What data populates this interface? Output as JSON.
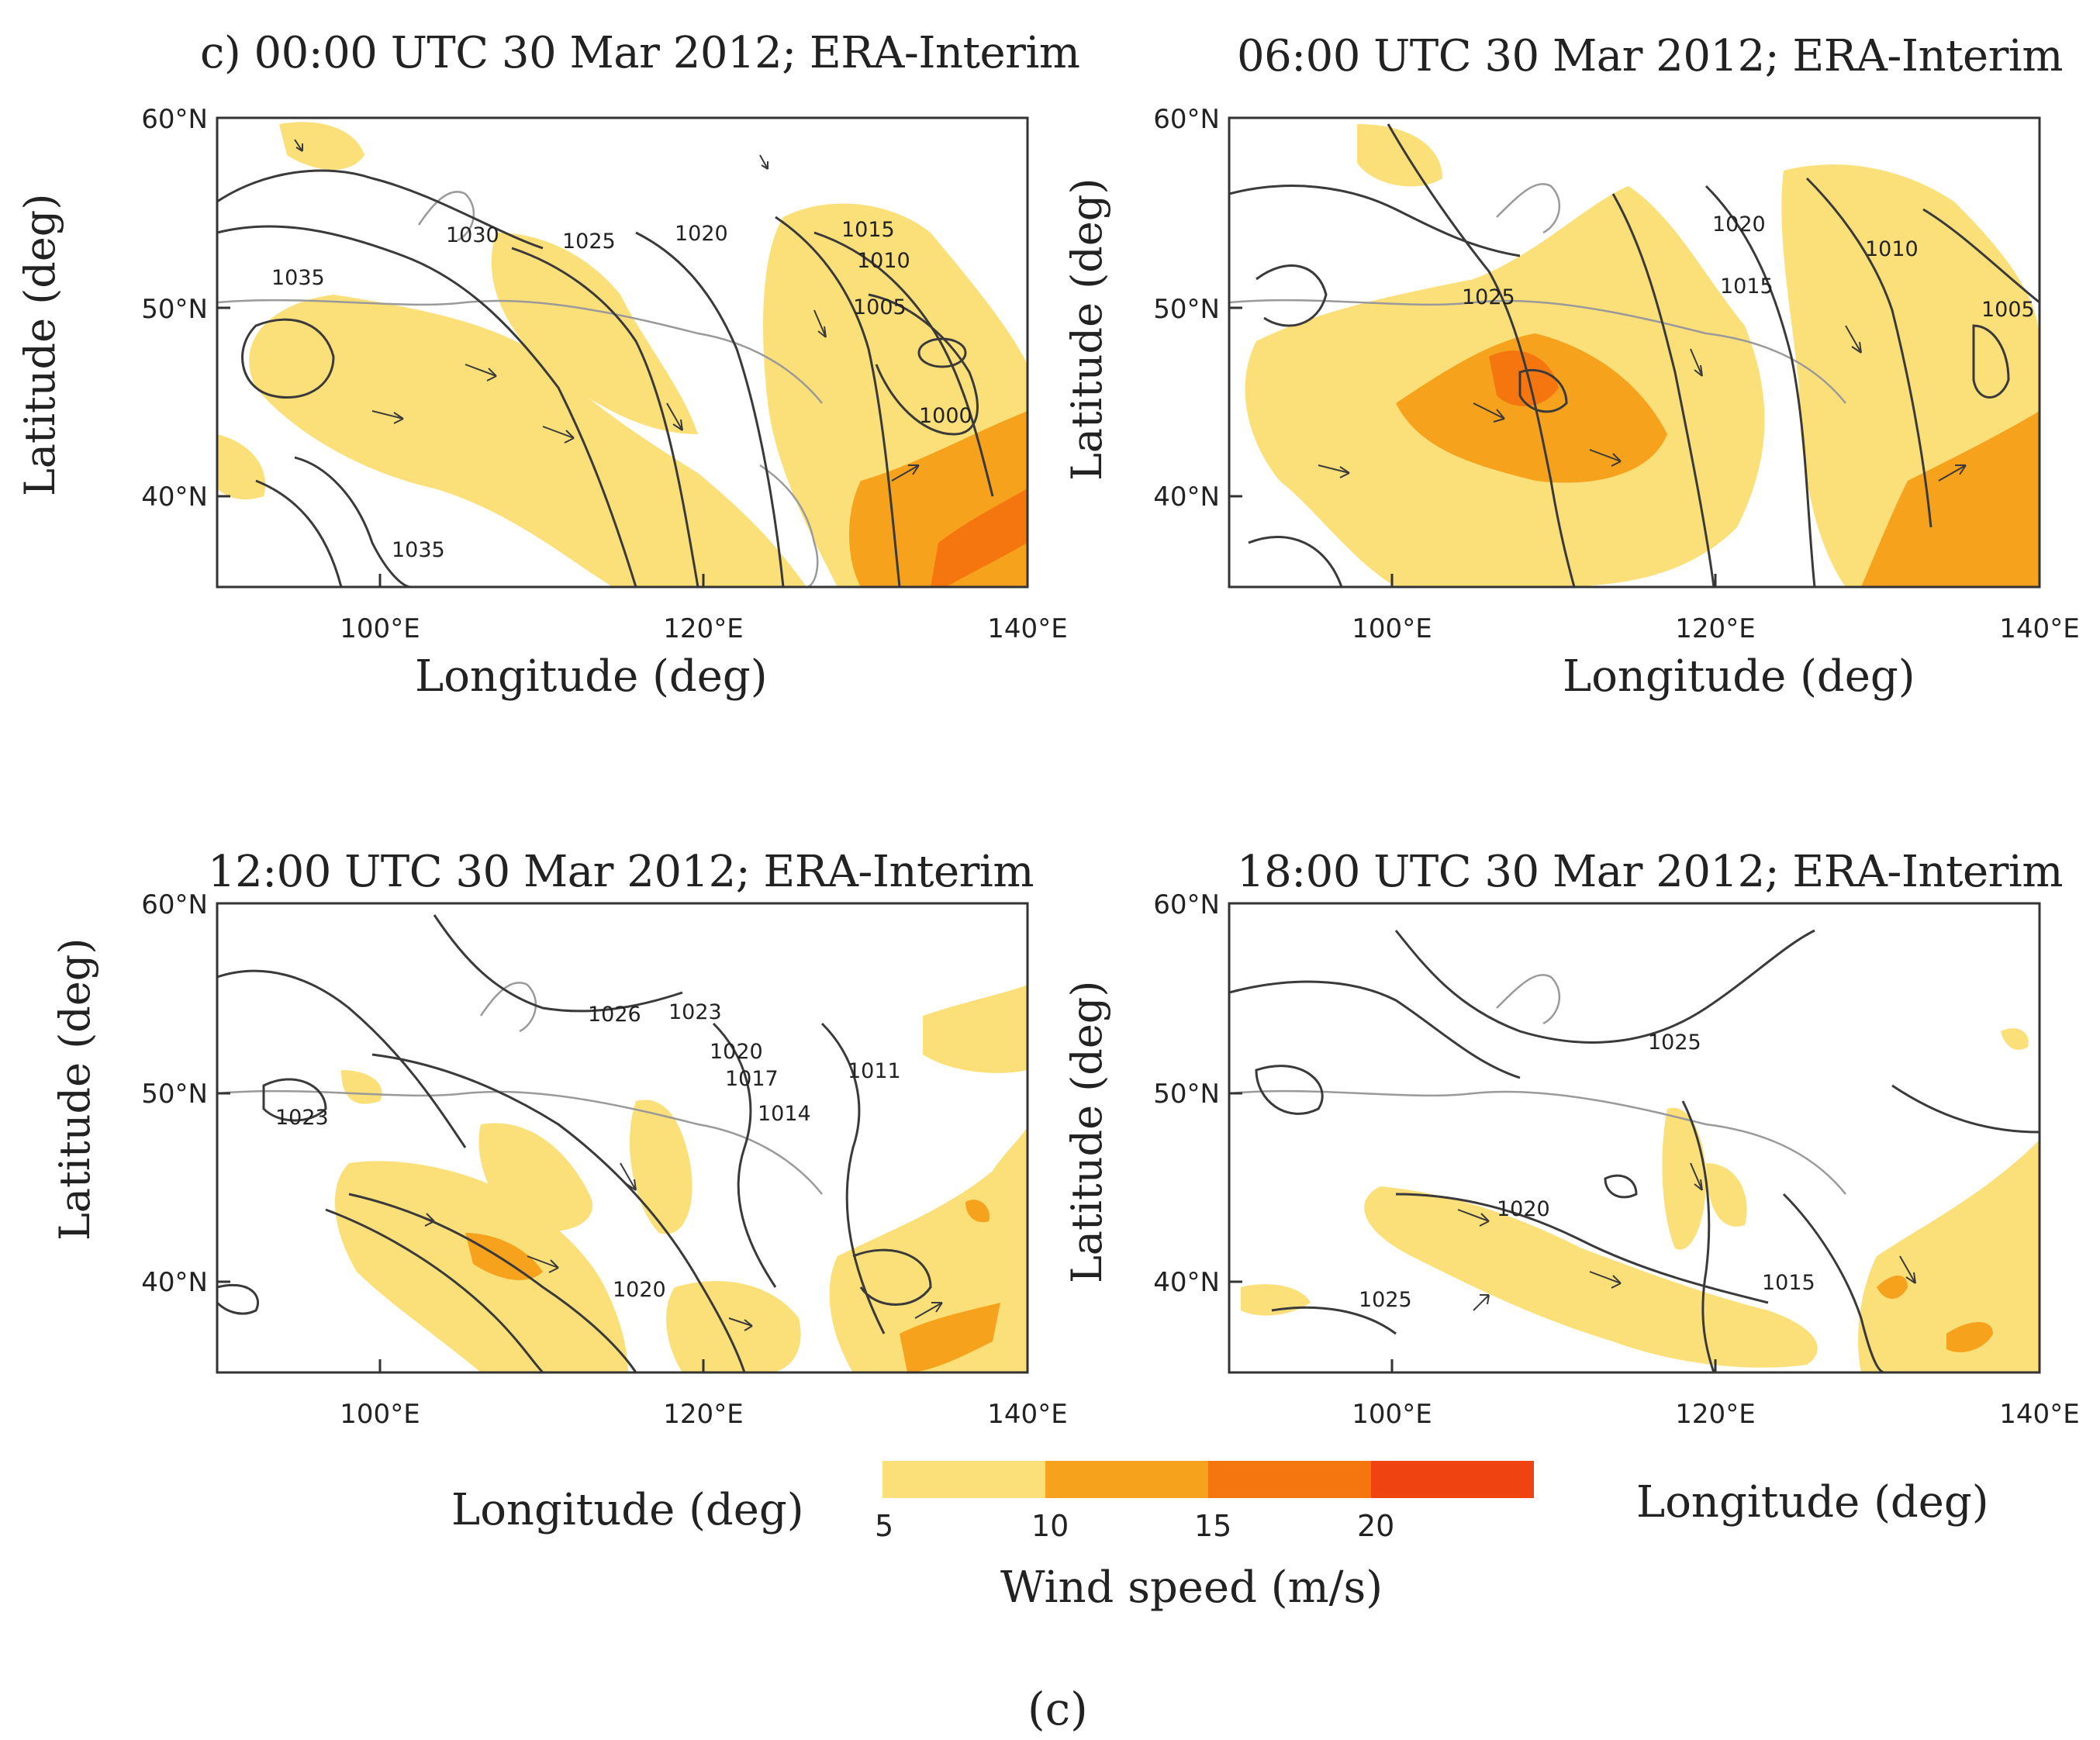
{
  "figure": {
    "caption": "(c)"
  },
  "colors": {
    "c5_10": "#fbe07a",
    "c10_15": "#f7a21c",
    "c15_20": "#f5760f",
    "c20": "#f04312",
    "contour": "#3a3a3a",
    "coast": "#9a9a9a"
  },
  "panels": [
    {
      "title": "c) 00:00 UTC 30 Mar 2012; ERA-Interim",
      "ylabel": "Latitude (deg)",
      "xlabel": "Longitude (deg)",
      "xticks": [
        "100°E",
        "120°E",
        "140°E"
      ],
      "yticks": [
        "60°N",
        "50°N",
        "40°N"
      ],
      "isobar_labels": [
        "1030",
        "1025",
        "1020",
        "1015",
        "1010",
        "1005",
        "1000",
        "1035",
        "1035"
      ]
    },
    {
      "title": "06:00 UTC 30 Mar 2012; ERA-Interim",
      "ylabel": "Latitude (deg)",
      "xlabel": "Longitude (deg)",
      "xticks": [
        "100°E",
        "120°E",
        "140°E"
      ],
      "yticks": [
        "60°N",
        "50°N",
        "40°N"
      ],
      "isobar_labels": [
        "1020",
        "1010",
        "1025",
        "1015",
        "1005"
      ]
    },
    {
      "title": "12:00 UTC 30 Mar 2012; ERA-Interim",
      "ylabel": "Latitude (deg)",
      "xlabel": "Longitude (deg)",
      "xticks": [
        "100°E",
        "120°E",
        "140°E"
      ],
      "yticks": [
        "60°N",
        "50°N",
        "40°N"
      ],
      "isobar_labels": [
        "1026",
        "1023",
        "1020",
        "1017",
        "1014",
        "1011",
        "1023",
        "1020"
      ]
    },
    {
      "title": "18:00 UTC 30 Mar 2012; ERA-Interim",
      "ylabel": "Latitude (deg)",
      "xlabel": "Longitude (deg)",
      "xticks": [
        "100°E",
        "120°E",
        "140°E"
      ],
      "yticks": [
        "60°N",
        "50°N",
        "40°N"
      ],
      "isobar_labels": [
        "1025",
        "1020",
        "1015",
        "1025"
      ]
    }
  ],
  "colorbar": {
    "label": "Wind speed (m/s)",
    "ticks": [
      "5",
      "10",
      "15",
      "20"
    ],
    "bins": [
      {
        "range": "5-10"
      },
      {
        "range": "10-15"
      },
      {
        "range": "15-20"
      },
      {
        "range": ">20"
      }
    ]
  }
}
